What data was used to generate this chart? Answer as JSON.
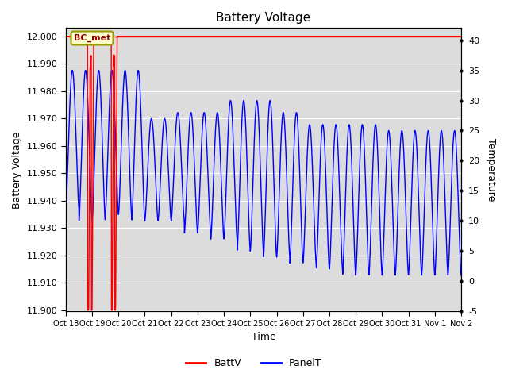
{
  "title": "Battery Voltage",
  "xlabel": "Time",
  "ylabel_left": "Battery Voltage",
  "ylabel_right": "Temperature",
  "ylim_left": [
    11.8995,
    12.003
  ],
  "ylim_right": [
    -5,
    42
  ],
  "yticks_left": [
    11.9,
    11.91,
    11.92,
    11.93,
    11.94,
    11.95,
    11.96,
    11.97,
    11.98,
    11.99,
    12.0
  ],
  "yticks_right": [
    -5,
    0,
    5,
    10,
    15,
    20,
    25,
    30,
    35,
    40
  ],
  "background_color": "#ffffff",
  "plot_bg_color": "#dcdcdc",
  "grid_color": "#ffffff",
  "annotation_text": "BC_met",
  "annotation_bg": "#ffffcc",
  "annotation_border": "#999900",
  "annotation_text_color": "#8B0000",
  "batt_color": "#ff0000",
  "panel_color": "#0000ff",
  "x_tick_labels": [
    "Oct 18",
    "Oct 19",
    "Oct 20",
    "Oct 21",
    "Oct 22",
    "Oct 23",
    "Oct 24",
    "Oct 25",
    "Oct 26",
    "Oct 27",
    "Oct 28",
    "Oct 29",
    "Oct 30",
    "Oct 31",
    "Nov 1",
    "Nov 2"
  ],
  "figsize": [
    6.4,
    4.8
  ],
  "dpi": 100
}
